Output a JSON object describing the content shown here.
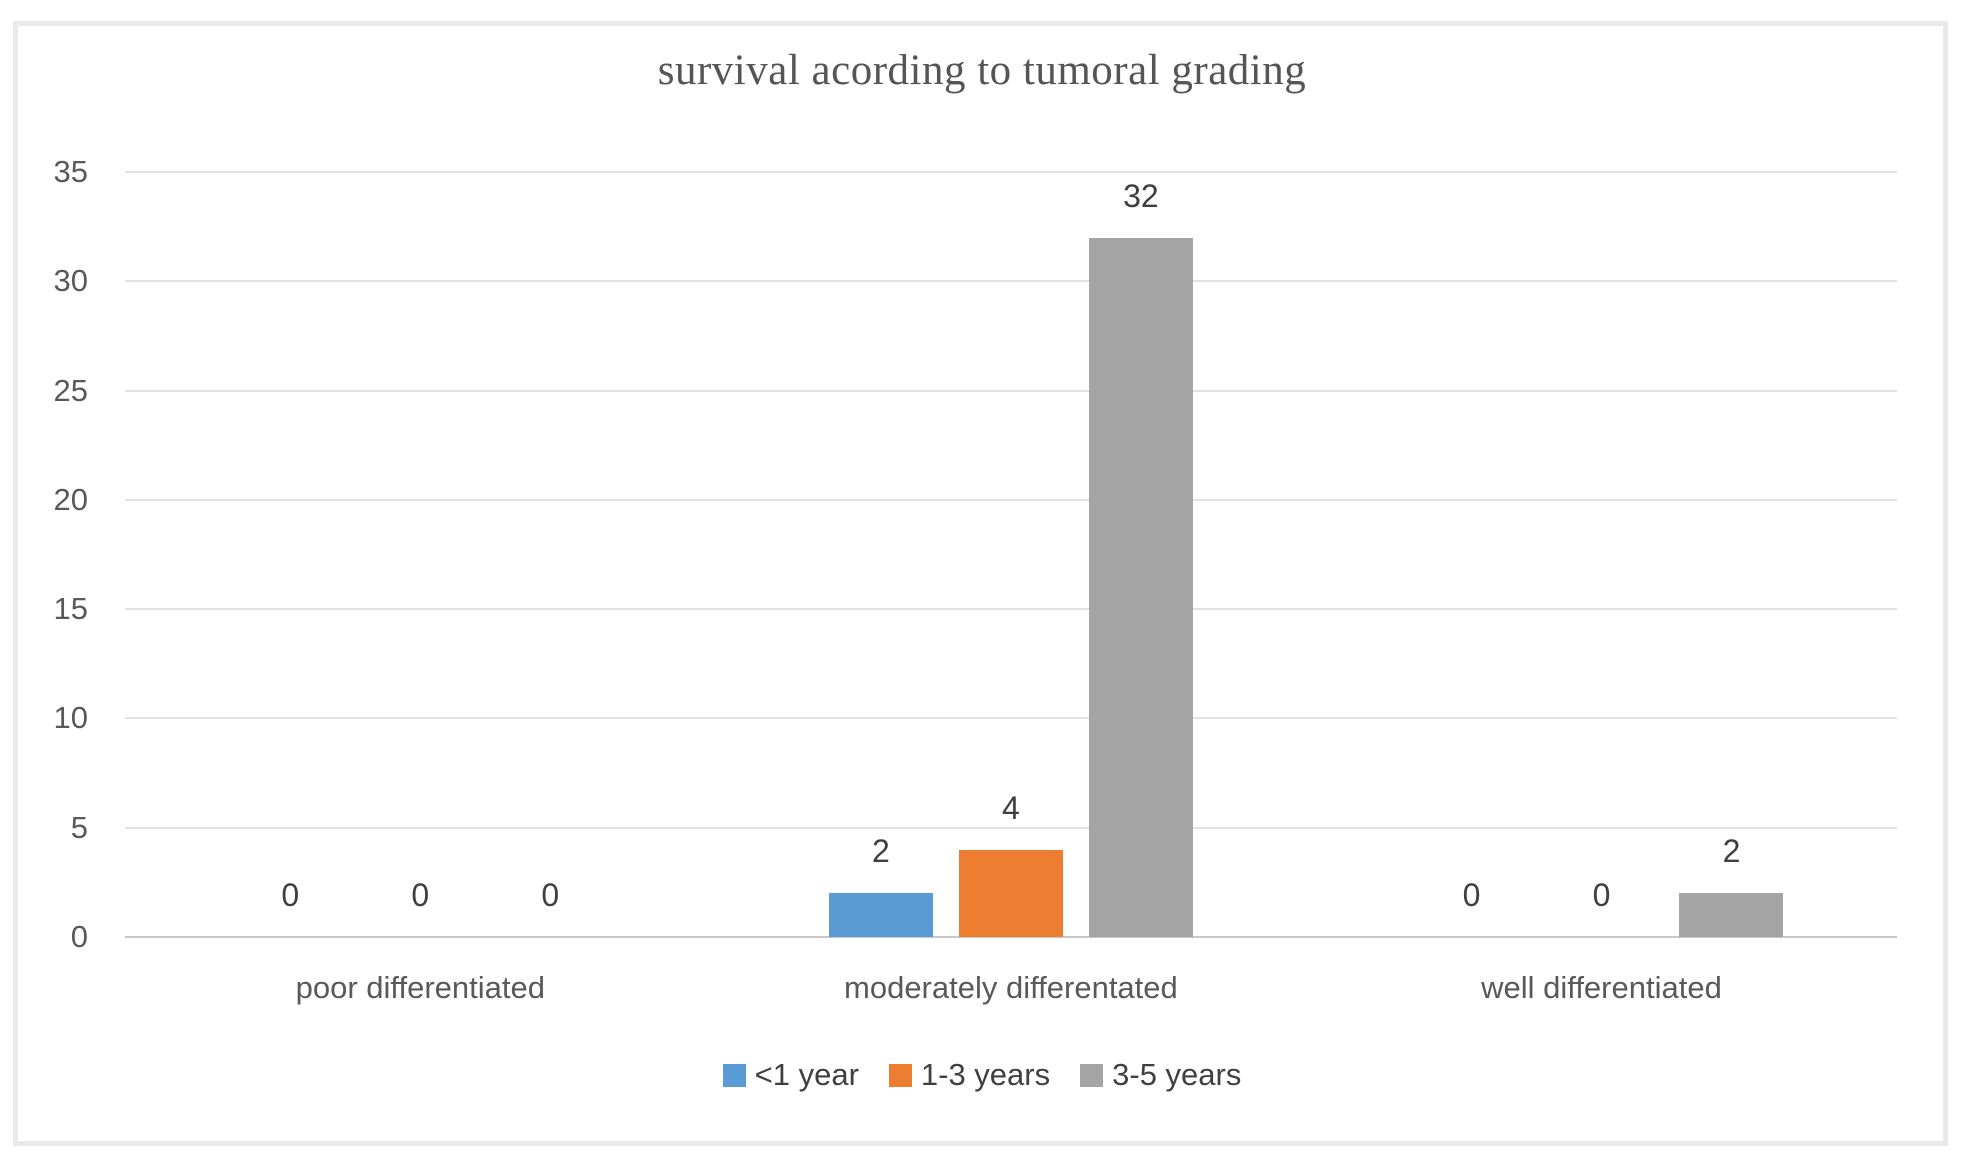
{
  "chart_data": {
    "type": "bar",
    "title": "survival acording to tumoral grading",
    "categories": [
      "poor differentiated",
      "moderately differentated",
      "well differentiated"
    ],
    "series": [
      {
        "name": "<1 year",
        "color": "#5B9BD5",
        "values": [
          0,
          2,
          0
        ]
      },
      {
        "name": "1-3 years",
        "color": "#ED7D31",
        "values": [
          0,
          4,
          0
        ]
      },
      {
        "name": "3-5 years",
        "color": "#A5A5A5",
        "values": [
          0,
          32,
          2
        ]
      }
    ],
    "ylim": [
      0,
      35
    ],
    "yticks": [
      0,
      5,
      10,
      15,
      20,
      25,
      30,
      35
    ],
    "grid": true,
    "data_labels": true,
    "legend_position": "bottom",
    "style": {
      "gridline_color": "#e2e2e2",
      "axis_line_color": "#c8c8c8",
      "axis_label_color": "#595959",
      "data_label_color": "#3f3f3f",
      "title_color": "#555555",
      "border_color": "#e9e9e9"
    }
  }
}
